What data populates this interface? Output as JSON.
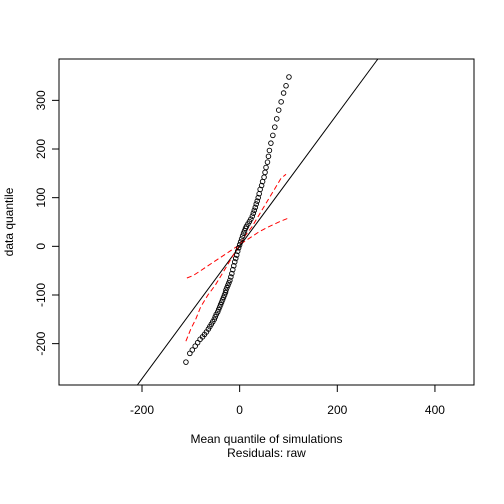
{
  "chart_data": {
    "type": "scatter",
    "xlabel": "Mean quantile of simulations",
    "sublabel": "Residuals: raw",
    "ylabel": "data quantile",
    "xlim": [
      -370,
      480
    ],
    "ylim": [
      -285,
      385
    ],
    "x_ticks": [
      -200,
      0,
      200,
      400
    ],
    "y_ticks": [
      -200,
      -100,
      0,
      100,
      200,
      300
    ],
    "grid": false,
    "colors": {
      "points": "#000000",
      "reference_line": "#000000",
      "envelope": "#ff0000",
      "axes": "#000000"
    },
    "reference_line": {
      "intercept": 0,
      "slope": 1.36
    },
    "points": [
      [
        -110,
        -238
      ],
      [
        -102,
        -220
      ],
      [
        -97,
        -213
      ],
      [
        -91,
        -205
      ],
      [
        -86,
        -198
      ],
      [
        -81,
        -191
      ],
      [
        -76,
        -186
      ],
      [
        -72,
        -181
      ],
      [
        -68,
        -176
      ],
      [
        -64,
        -170
      ],
      [
        -61,
        -165
      ],
      [
        -58,
        -160
      ],
      [
        -55,
        -155
      ],
      [
        -52,
        -150
      ],
      [
        -50,
        -145
      ],
      [
        -48,
        -140
      ],
      [
        -45,
        -135
      ],
      [
        -43,
        -130
      ],
      [
        -41,
        -125
      ],
      [
        -39,
        -120
      ],
      [
        -37,
        -115
      ],
      [
        -35,
        -110
      ],
      [
        -33,
        -105
      ],
      [
        -31,
        -100
      ],
      [
        -29,
        -95
      ],
      [
        -28,
        -90
      ],
      [
        -26,
        -85
      ],
      [
        -24,
        -80
      ],
      [
        -22,
        -75
      ],
      [
        -20,
        -70
      ],
      [
        -18,
        -63
      ],
      [
        -16,
        -56
      ],
      [
        -14,
        -48
      ],
      [
        -12,
        -40
      ],
      [
        -10,
        -32
      ],
      [
        -8,
        -25
      ],
      [
        -6,
        -18
      ],
      [
        -4,
        -10
      ],
      [
        -2,
        -3
      ],
      [
        0,
        3
      ],
      [
        2,
        9
      ],
      [
        4,
        15
      ],
      [
        6,
        21
      ],
      [
        8,
        27
      ],
      [
        10,
        32
      ],
      [
        12,
        37
      ],
      [
        14,
        41
      ],
      [
        17,
        46
      ],
      [
        20,
        51
      ],
      [
        23,
        56
      ],
      [
        26,
        62
      ],
      [
        28,
        68
      ],
      [
        30,
        74
      ],
      [
        32,
        80
      ],
      [
        34,
        87
      ],
      [
        36,
        93
      ],
      [
        38,
        100
      ],
      [
        40,
        108
      ],
      [
        42,
        117
      ],
      [
        45,
        125
      ],
      [
        47,
        133
      ],
      [
        50,
        142
      ],
      [
        52,
        152
      ],
      [
        54,
        162
      ],
      [
        57,
        173
      ],
      [
        59,
        185
      ],
      [
        61,
        197
      ],
      [
        64,
        212
      ],
      [
        68,
        228
      ],
      [
        72,
        245
      ],
      [
        76,
        262
      ],
      [
        80,
        280
      ],
      [
        85,
        297
      ],
      [
        90,
        315
      ],
      [
        95,
        330
      ],
      [
        101,
        348
      ]
    ],
    "envelope_lower": [
      [
        -108,
        -65
      ],
      [
        -95,
        -60
      ],
      [
        -80,
        -50
      ],
      [
        -65,
        -40
      ],
      [
        -50,
        -30
      ],
      [
        -35,
        -20
      ],
      [
        -20,
        -10
      ],
      [
        -5,
        0
      ],
      [
        10,
        10
      ],
      [
        25,
        20
      ],
      [
        40,
        30
      ],
      [
        55,
        38
      ],
      [
        70,
        45
      ],
      [
        85,
        52
      ],
      [
        100,
        58
      ]
    ],
    "envelope_upper": [
      [
        -110,
        -195
      ],
      [
        -100,
        -170
      ],
      [
        -90,
        -150
      ],
      [
        -80,
        -125
      ],
      [
        -65,
        -100
      ],
      [
        -50,
        -80
      ],
      [
        -35,
        -55
      ],
      [
        -20,
        -30
      ],
      [
        -5,
        -5
      ],
      [
        10,
        20
      ],
      [
        25,
        40
      ],
      [
        40,
        65
      ],
      [
        55,
        90
      ],
      [
        70,
        115
      ],
      [
        85,
        140
      ],
      [
        95,
        148
      ]
    ]
  }
}
